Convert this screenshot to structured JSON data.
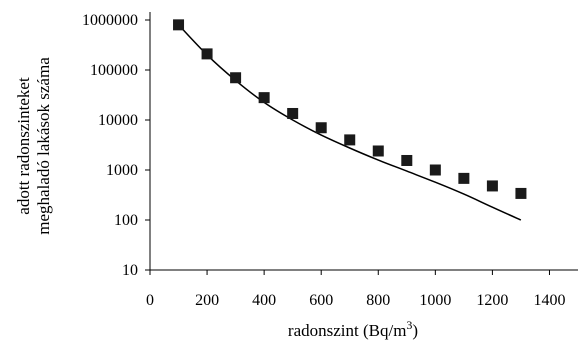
{
  "chart_data": {
    "type": "scatter",
    "title": "",
    "xlabel": "radonszint (Bq/m",
    "xlabel_superscript": "3",
    "xlabel_suffix": ")",
    "ylabel_lines": [
      "adott radonszinteket",
      "meghaladó lakások száma"
    ],
    "xlim": [
      0,
      1500
    ],
    "ylim": [
      10,
      1000000
    ],
    "y_scale": "log",
    "grid": false,
    "x_ticks": [
      0,
      200,
      400,
      600,
      800,
      1000,
      1200,
      1400
    ],
    "x_tick_labels": [
      "0",
      "200",
      "400",
      "600",
      "800",
      "1000",
      "1200",
      "1400"
    ],
    "y_ticks": [
      10,
      100,
      1000,
      10000,
      100000,
      1000000
    ],
    "y_tick_labels": [
      "10",
      "100",
      "1000",
      "10000",
      "100000",
      "1000000"
    ],
    "series": [
      {
        "type": "scatter",
        "marker": "square",
        "x": [
          100,
          200,
          300,
          400,
          500,
          600,
          700,
          800,
          900,
          1000,
          1100,
          1200,
          1300
        ],
        "y": [
          800000,
          210000,
          70000,
          28000,
          13500,
          7000,
          4000,
          2400,
          1550,
          1000,
          680,
          480,
          340
        ]
      },
      {
        "type": "line",
        "x": [
          100,
          200,
          300,
          400,
          500,
          600,
          700,
          800,
          900,
          1000,
          1100,
          1200,
          1300
        ],
        "y": [
          800000,
          200000,
          62000,
          22500,
          10000,
          5000,
          2750,
          1580,
          950,
          570,
          330,
          180,
          100
        ]
      }
    ],
    "colors": {
      "marker": "#1a1a1a",
      "line": "#000000"
    }
  }
}
